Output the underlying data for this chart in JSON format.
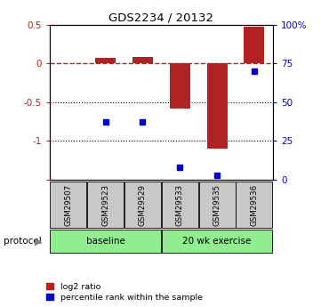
{
  "title": "GDS2234 / 20132",
  "samples": [
    "GSM29507",
    "GSM29523",
    "GSM29529",
    "GSM29533",
    "GSM29535",
    "GSM29536"
  ],
  "log2_ratio": [
    0.0,
    0.07,
    0.08,
    -0.58,
    -1.1,
    0.47
  ],
  "percentile_rank": [
    null,
    37,
    37,
    8,
    3,
    70
  ],
  "ylim_left": [
    -1.5,
    0.5
  ],
  "ylim_right": [
    0,
    100
  ],
  "yticks_left": [
    -1.5,
    -1.0,
    -0.5,
    0.0,
    0.5
  ],
  "ytick_labels_left": [
    "",
    "-1",
    "-0.5",
    "0",
    "0.5"
  ],
  "yticks_right": [
    0,
    25,
    50,
    75,
    100
  ],
  "ytick_labels_right": [
    "0",
    "25",
    "50",
    "75",
    "100%"
  ],
  "hlines_dotted": [
    -0.5,
    -1.0
  ],
  "hline_dashed": 0.0,
  "bar_color": "#b22222",
  "marker_color": "#0000cd",
  "bar_width": 0.55,
  "baseline_label": "baseline",
  "exercise_label": "20 wk exercise",
  "protocol_label": "protocol",
  "legend_red_label": "log2 ratio",
  "legend_blue_label": "percentile rank within the sample",
  "green_color": "#90ee90",
  "sample_box_color": "#c8c8c8",
  "background_color": "#ffffff"
}
